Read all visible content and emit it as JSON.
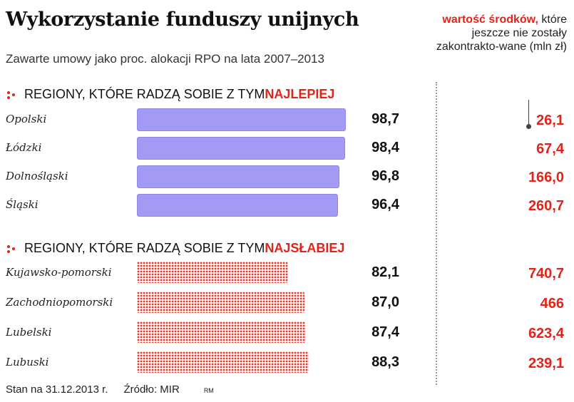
{
  "title": "Wykorzystanie funduszy unijnych",
  "subtitle": "Zawarte umowy jako proc. alokacji RPO na lata 2007–2013",
  "side_note": {
    "highlight": "wartość środków,",
    "rest": "które jeszcze nie zostały zakontrakto-wane (mln zł)"
  },
  "section_best": {
    "prefix": "REGIONY, KTÓRE RADZĄ SOBIE Z TYM ",
    "emph": "NAJLEPIEJ"
  },
  "section_worst": {
    "prefix": "REGIONY, KTÓRE RADZĄ SOBIE Z TYM ",
    "emph": "NAJSŁABIEJ"
  },
  "colors": {
    "best_bar": "#a29af3",
    "worst_bar": "#e63b2e",
    "accent": "#e2231a"
  },
  "chart_data": {
    "type": "bar",
    "orientation": "horizontal",
    "groups": [
      {
        "name": "REGIONY, KTÓRE RADZĄ SOBIE Z TYM NAJLEPIEJ",
        "categories": [
          "Opolski",
          "Łódzki",
          "Dolnośląski",
          "Śląski"
        ],
        "values": [
          98.7,
          98.4,
          96.8,
          96.4
        ],
        "value_labels": [
          "98,7",
          "98,4",
          "96,8",
          "96,4"
        ],
        "remaining_labels": [
          "26,1",
          "67,4",
          "166,0",
          "260,7"
        ],
        "remaining": [
          26.1,
          67.4,
          166.0,
          260.7
        ]
      },
      {
        "name": "REGIONY, KTÓRE RADZĄ SOBIE Z TYM NAJSŁABIEJ",
        "categories": [
          "Kujawsko-pomorski",
          "Zachodniopomorski",
          "Lubelski",
          "Lubuski"
        ],
        "values": [
          82.1,
          87.0,
          87.4,
          88.3
        ],
        "value_labels": [
          "82,1",
          "87,0",
          "87,4",
          "88,3"
        ],
        "remaining_labels": [
          "740,7",
          "466",
          "623,4",
          "239,1"
        ],
        "remaining": [
          740.7,
          466,
          623.4,
          239.1
        ]
      }
    ]
  },
  "footer": {
    "date": "Stan na 31.12.2013 r.",
    "source": "Źródło: MIR",
    "author": "RM"
  }
}
